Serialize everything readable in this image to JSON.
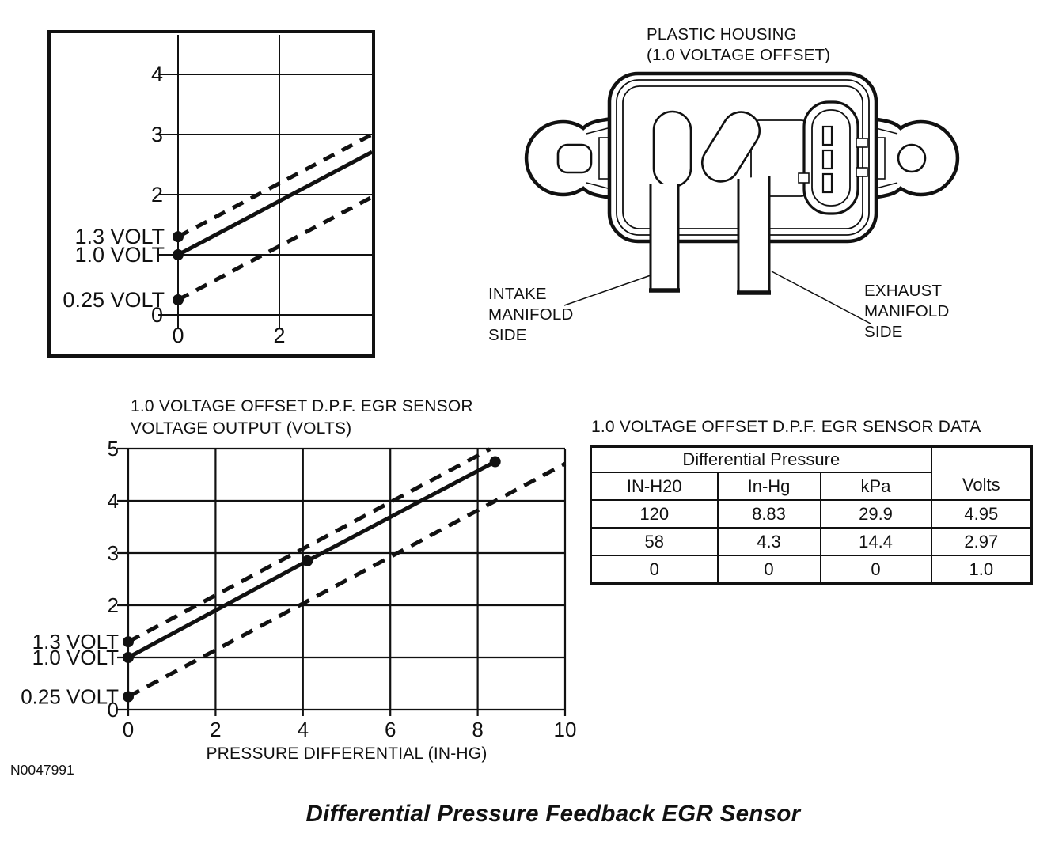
{
  "page": {
    "figure_number": "N0047991",
    "caption": "Differential Pressure Feedback EGR Sensor"
  },
  "sensor_diagram": {
    "housing_label": [
      "PLASTIC HOUSING",
      "(1.0 VOLTAGE OFFSET)"
    ],
    "intake_label": [
      "INTAKE",
      "MANIFOLD",
      "SIDE"
    ],
    "exhaust_label": [
      "EXHAUST",
      "MANIFOLD",
      "SIDE"
    ]
  },
  "chart_data": [
    {
      "id": "small-voltage-chart",
      "type": "line",
      "title": "",
      "xlabel": "",
      "ylabel": "",
      "xlim": [
        0,
        3.8
      ],
      "ylim": [
        0,
        4.7
      ],
      "grid": true,
      "xticks": [
        0,
        2
      ],
      "xtick_labels": [
        "0",
        "2"
      ],
      "yticks": [
        {
          "v": 4,
          "label": "4"
        },
        {
          "v": 3,
          "label": "3"
        },
        {
          "v": 2,
          "label": "2"
        },
        {
          "v": 0,
          "label": "0"
        }
      ],
      "volt_markers": [
        {
          "value": 1.3,
          "label": "1.3 VOLT"
        },
        {
          "value": 1.0,
          "label": "1.0 VOLT"
        },
        {
          "value": 0.25,
          "label": "0.25 VOLT"
        }
      ],
      "series": [
        {
          "name": "nominal-output",
          "style": "solid",
          "points": [
            [
              0,
              1.0
            ],
            [
              3.83,
              2.71
            ]
          ],
          "markers": [
            [
              0,
              1.0
            ]
          ]
        },
        {
          "name": "upper-tolerance",
          "style": "dashed",
          "points": [
            [
              0,
              1.3
            ],
            [
              3.83,
              3.0
            ]
          ],
          "markers": [
            [
              0,
              1.3
            ]
          ]
        },
        {
          "name": "lower-tolerance",
          "style": "dashed",
          "points": [
            [
              0,
              0.25
            ],
            [
              3.83,
              1.96
            ]
          ],
          "markers": [
            [
              0,
              0.25
            ]
          ]
        }
      ]
    },
    {
      "id": "voltage-output-chart",
      "type": "line",
      "title_lines": [
        "1.0 VOLTAGE OFFSET D.P.F. EGR SENSOR",
        "VOLTAGE OUTPUT (VOLTS)"
      ],
      "xlabel": "PRESSURE DIFFERENTIAL (IN-HG)",
      "ylabel": "",
      "xlim": [
        0,
        10
      ],
      "ylim": [
        0,
        5
      ],
      "grid": true,
      "xticks": [
        0,
        2,
        4,
        6,
        8,
        10
      ],
      "xtick_labels": [
        "0",
        "2",
        "4",
        "6",
        "8",
        "10"
      ],
      "yticks": [
        {
          "v": 5,
          "label": "5"
        },
        {
          "v": 4,
          "label": "4"
        },
        {
          "v": 3,
          "label": "3"
        },
        {
          "v": 2,
          "label": "2"
        },
        {
          "v": 0,
          "label": "0"
        }
      ],
      "volt_markers": [
        {
          "value": 1.3,
          "label": "1.3 VOLT"
        },
        {
          "value": 1.0,
          "label": "1.0 VOLT"
        },
        {
          "value": 0.25,
          "label": "0.25 VOLT"
        }
      ],
      "series": [
        {
          "name": "nominal-output",
          "style": "solid",
          "points": [
            [
              0,
              1.0
            ],
            [
              4.1,
              2.85
            ],
            [
              8.4,
              4.75
            ]
          ],
          "markers": [
            [
              0,
              1.0
            ],
            [
              4.1,
              2.85
            ],
            [
              8.4,
              4.75
            ]
          ]
        },
        {
          "name": "upper-tolerance",
          "style": "dashed",
          "points": [
            [
              0,
              1.3
            ],
            [
              8.28,
              4.99
            ]
          ],
          "markers": [
            [
              0,
              1.3
            ]
          ]
        },
        {
          "name": "lower-tolerance",
          "style": "dashed",
          "points": [
            [
              0,
              0.25
            ],
            [
              10,
              4.71
            ]
          ],
          "markers": [
            [
              0,
              0.25
            ]
          ]
        }
      ]
    }
  ],
  "table": {
    "title": "1.0 VOLTAGE OFFSET D.P.F. EGR SENSOR DATA",
    "group_header": "Differential Pressure",
    "columns": [
      "IN-H20",
      "In-Hg",
      "kPa",
      "Volts"
    ],
    "rows": [
      [
        "120",
        "8.83",
        "29.9",
        "4.95"
      ],
      [
        "58",
        "4.3",
        "14.4",
        "2.97"
      ],
      [
        "0",
        "0",
        "0",
        "1.0"
      ]
    ]
  }
}
